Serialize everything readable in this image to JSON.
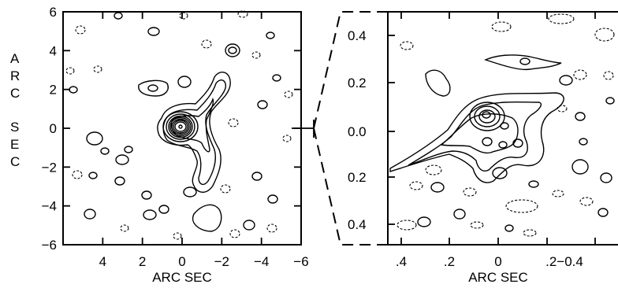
{
  "chart_data": [
    {
      "type": "contour",
      "xlabel": "ARC SEC",
      "ylabel": "ARC SEC",
      "xlim": [
        6,
        -6
      ],
      "ylim": [
        -6,
        6
      ],
      "x_ticks": [
        "4",
        "2",
        "0",
        "−2",
        "−4",
        "−6"
      ],
      "x_tick_values": [
        4,
        2,
        0,
        -2,
        -4,
        -6
      ],
      "y_ticks": [
        "6",
        "4",
        "2",
        "0",
        "−2",
        "−4",
        "−6"
      ],
      "y_tick_values": [
        6,
        4,
        2,
        0,
        -2,
        -4,
        -6
      ],
      "peak": [
        0,
        0
      ],
      "grid": false
    },
    {
      "type": "contour",
      "xlabel": "ARC SEC",
      "xlim": [
        0.5,
        -0.5
      ],
      "ylim": [
        -0.5,
        0.5
      ],
      "x_ticks": [
        ".4",
        ".2",
        "0",
        ".2−0.4"
      ],
      "y_ticks": [
        "0.4",
        "0.2",
        "0.0",
        "0.2",
        "0.4"
      ],
      "grid": false
    }
  ],
  "left_ylabel_letters_top": [
    "A",
    "R",
    "C"
  ],
  "left_ylabel_letters_bottom": [
    "S",
    "E",
    "C"
  ]
}
